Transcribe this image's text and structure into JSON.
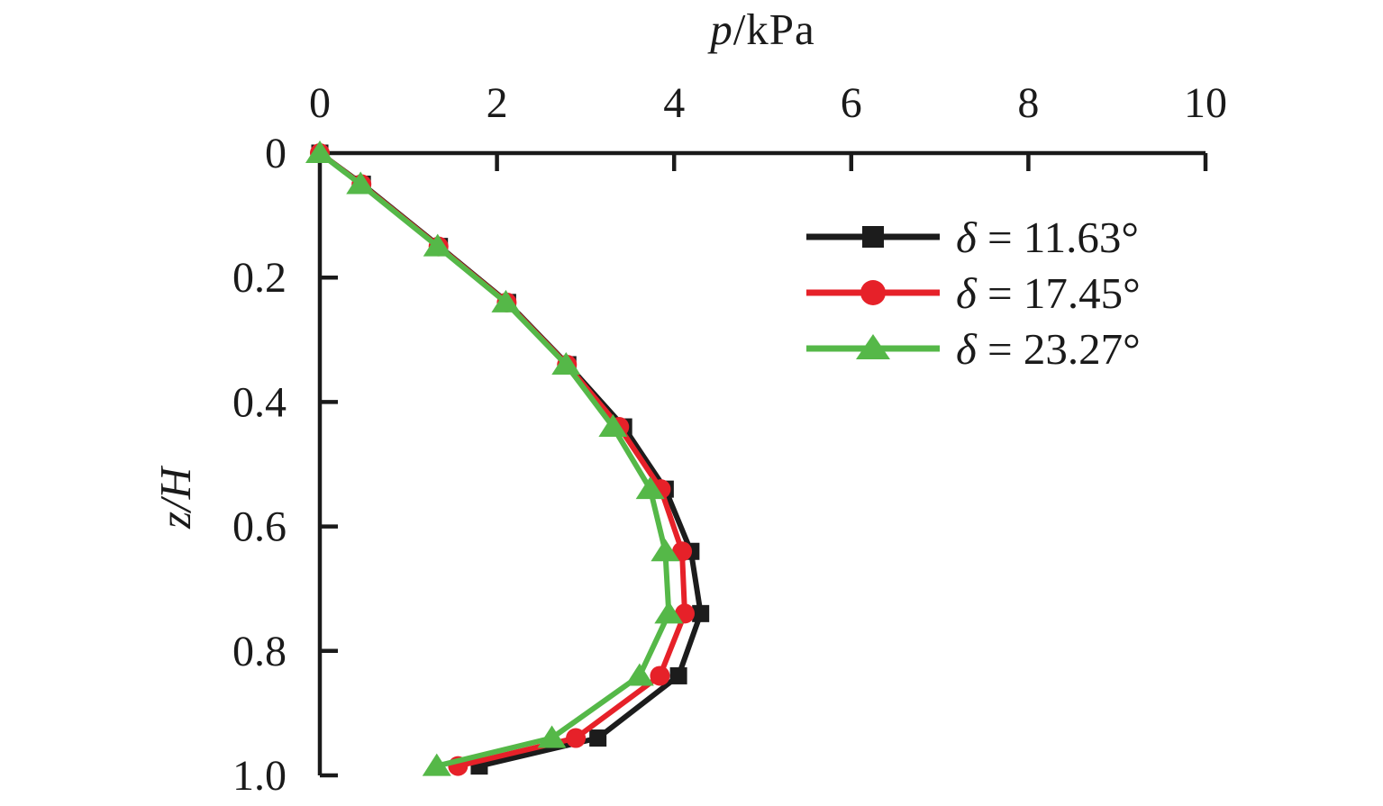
{
  "figure": {
    "title_parts": {
      "italic": "p",
      "rest": "/kPa"
    },
    "y_axis_title": "z/H"
  },
  "legend": {
    "items": [
      {
        "symbol": "δ",
        "rest": " = 11.63°"
      },
      {
        "symbol": "δ",
        "rest": " = 17.45°"
      },
      {
        "symbol": "δ",
        "rest": " = 23.27°"
      }
    ]
  },
  "chart_data": {
    "type": "line",
    "title": "p/kPa",
    "xlabel": "p/kPa",
    "ylabel": "z/H",
    "xlim": [
      0,
      10
    ],
    "ylim": [
      0,
      1.0
    ],
    "y_axis_inverted": true,
    "grid": false,
    "legend_position": "upper right inside",
    "axis_color": "#1a1a1a",
    "x_ticks": [
      0,
      2,
      4,
      6,
      8,
      10
    ],
    "x_tick_labels": [
      "0",
      "2",
      "4",
      "6",
      "8",
      "10"
    ],
    "y_ticks": [
      0,
      0.2,
      0.4,
      0.6,
      0.8,
      1.0
    ],
    "y_tick_labels": [
      "0",
      "0.2",
      "0.4",
      "0.6",
      "0.8",
      "1.0"
    ],
    "z_over_H": [
      0,
      0.05,
      0.15,
      0.24,
      0.34,
      0.44,
      0.54,
      0.64,
      0.74,
      0.84,
      0.94,
      0.985
    ],
    "series": [
      {
        "name": "δ = 11.63°",
        "marker": "square",
        "color": "#1c1c1c",
        "p_kPa": [
          0,
          0.48,
          1.35,
          2.12,
          2.8,
          3.43,
          3.9,
          4.19,
          4.3,
          4.05,
          3.14,
          1.8
        ]
      },
      {
        "name": "δ = 17.45°",
        "marker": "circle",
        "color": "#e62129",
        "p_kPa": [
          0,
          0.47,
          1.34,
          2.11,
          2.79,
          3.38,
          3.85,
          4.09,
          4.12,
          3.84,
          2.89,
          1.56
        ]
      },
      {
        "name": "δ = 23.27°",
        "marker": "triangle",
        "color": "#55b848",
        "p_kPa": [
          0,
          0.46,
          1.33,
          2.1,
          2.78,
          3.31,
          3.73,
          3.9,
          3.94,
          3.61,
          2.62,
          1.32
        ]
      }
    ]
  }
}
